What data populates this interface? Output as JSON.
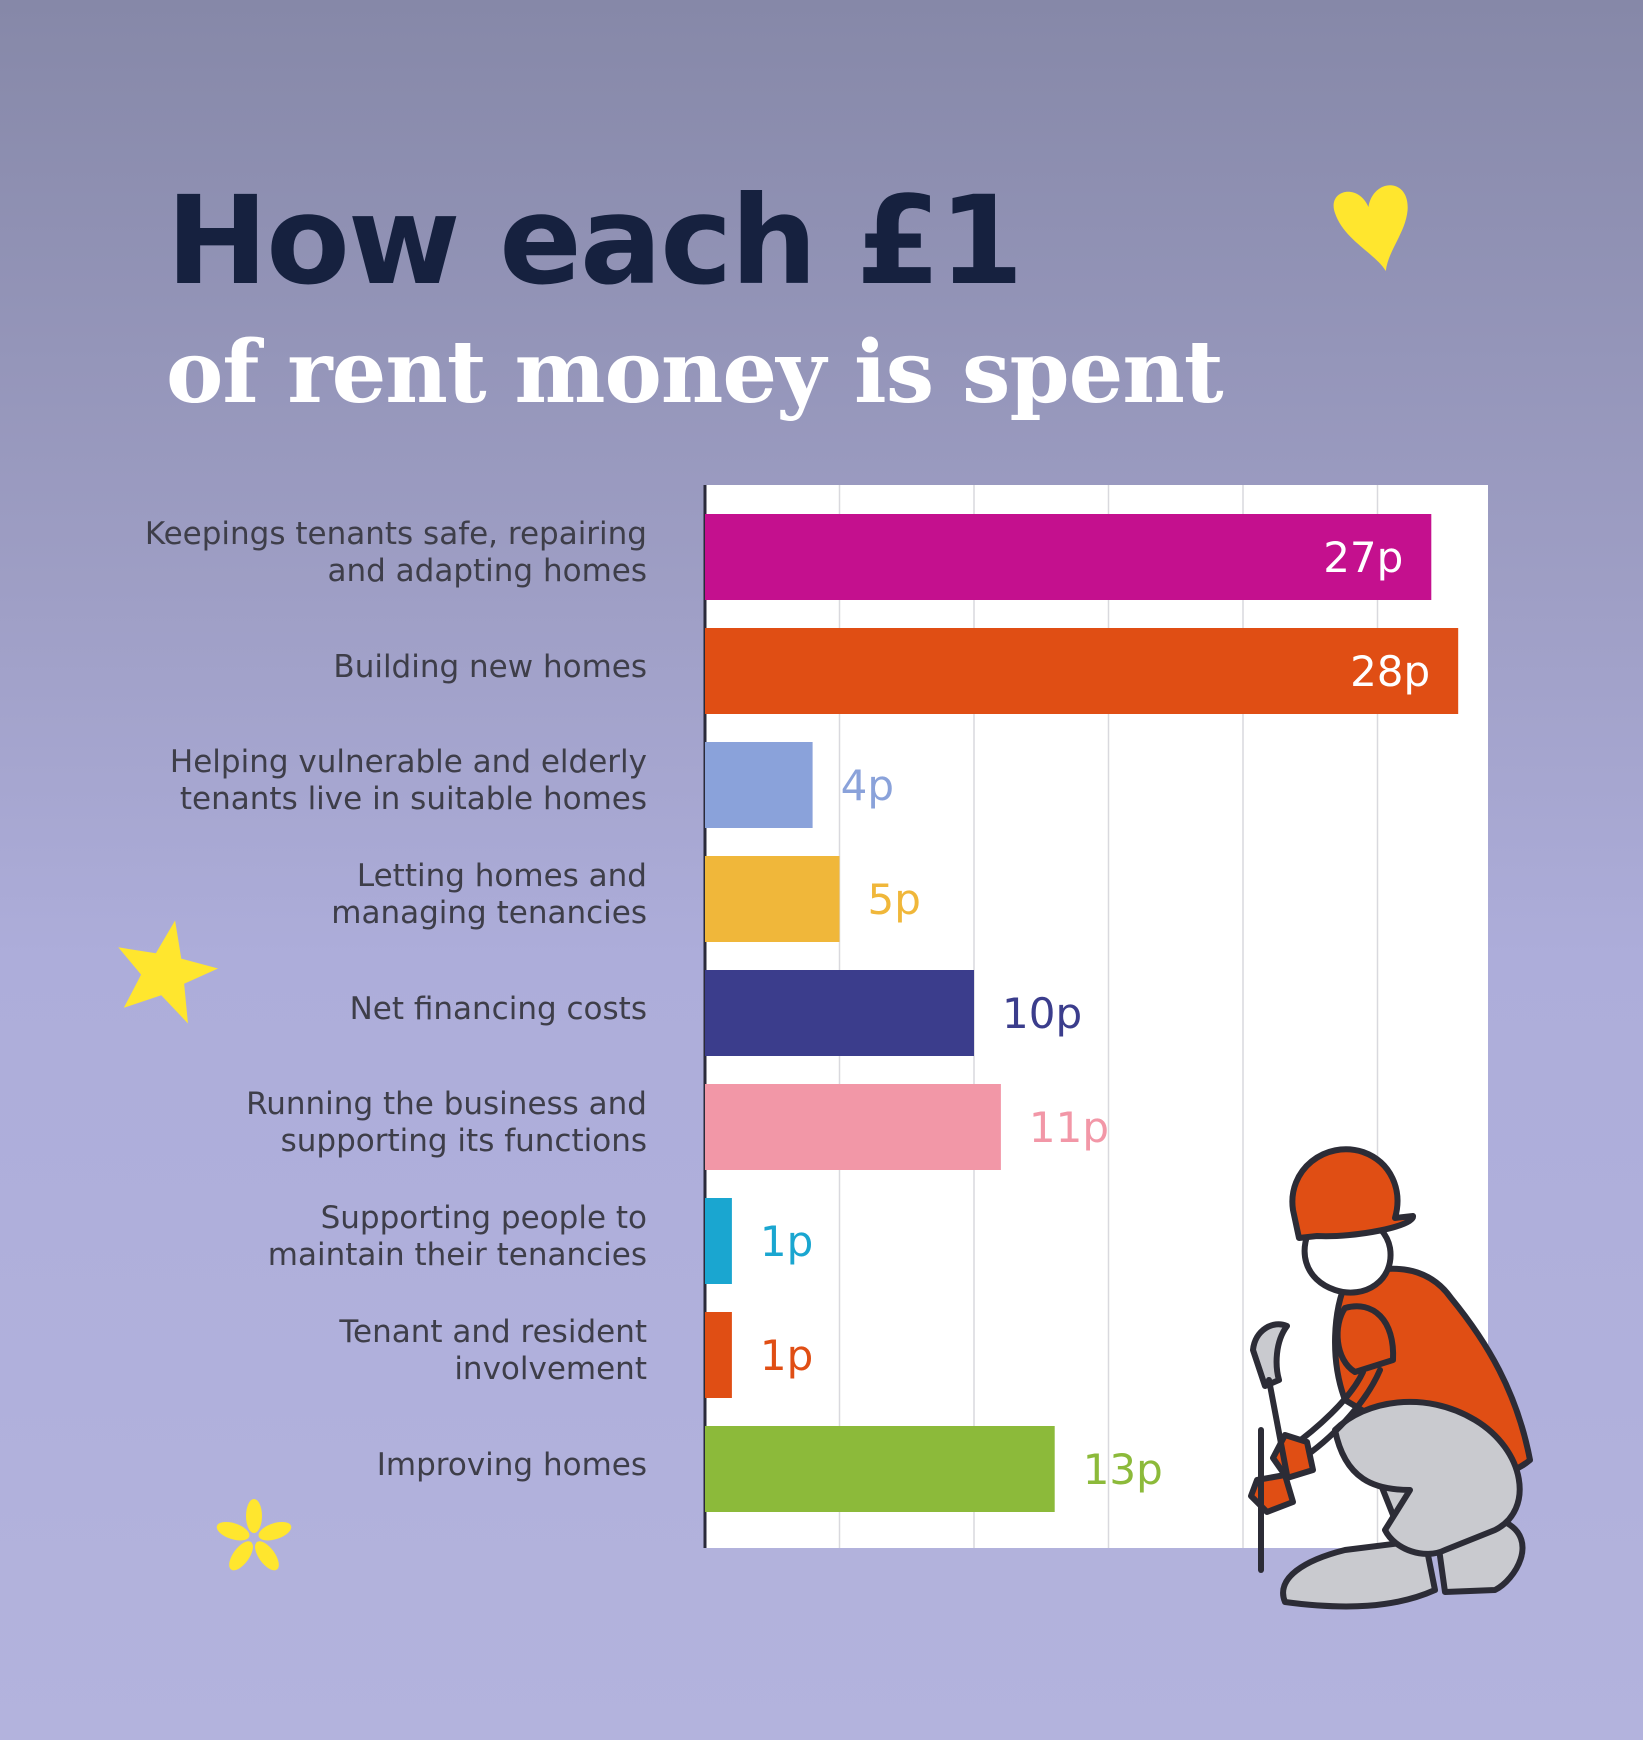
{
  "header": {
    "title": "How each £1",
    "subtitle": "of rent money is spent"
  },
  "chart_data": {
    "type": "bar",
    "orientation": "horizontal",
    "title": "How each £1 of rent money is spent",
    "unit": "p",
    "xlim": [
      0,
      30
    ],
    "grid": true,
    "categories": [
      "Keepings tenants safe, repairing and adapting homes",
      "Building new homes",
      "Helping vulnerable and elderly tenants live in suitable homes",
      "Letting homes and managing tenancies",
      "Net financing costs",
      "Running the business and supporting its functions",
      "Supporting people to maintain their tenancies",
      "Tenant and resident involvement",
      "Improving homes"
    ],
    "label_lines": [
      [
        "Keepings tenants safe, repairing",
        "and adapting homes"
      ],
      [
        "Building new homes"
      ],
      [
        "Helping vulnerable and elderly",
        "tenants live in suitable homes"
      ],
      [
        "Letting homes and",
        "managing tenancies"
      ],
      [
        "Net financing costs"
      ],
      [
        "Running the business and",
        "supporting its functions"
      ],
      [
        "Supporting people to",
        "maintain their tenancies"
      ],
      [
        "Tenant and resident",
        "involvement"
      ],
      [
        "Improving homes"
      ]
    ],
    "values": [
      27,
      28,
      4,
      5,
      10,
      11,
      1,
      1,
      13
    ],
    "data_labels": [
      "27p",
      "28p",
      "4p",
      "5p",
      "10p",
      "11p",
      "1p",
      "1p",
      "13p"
    ],
    "colors": [
      "#c4108e",
      "#e04e14",
      "#8aa2da",
      "#f0b73a",
      "#3b3d8c",
      "#f297a7",
      "#1aa6d0",
      "#e04e14",
      "#8cba3a"
    ],
    "label_inside": [
      true,
      true,
      false,
      false,
      false,
      false,
      false,
      false,
      false
    ]
  },
  "decorations": {
    "heart_color": "#ffe62e",
    "star_color": "#ffe62e",
    "flower_color": "#ffe62e",
    "worker_shirt_color": "#e04e14",
    "worker_trousers_color": "#c9cacf"
  }
}
